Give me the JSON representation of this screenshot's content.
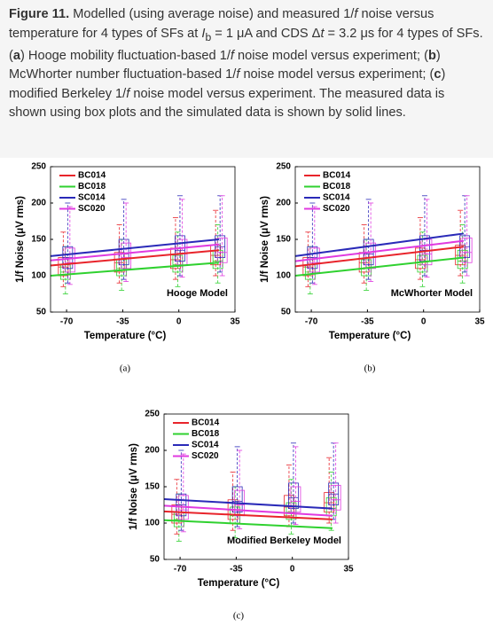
{
  "caption": [
    "Figure 11.",
    " Modelled (using average noise) and measured 1/",
    "f",
    " noise versus temperature for 4 types of SFs at ",
    "I",
    "b",
    " = 1 μA and CDS Δ",
    "t",
    " = 3.2 μs for 4 types of SFs. (",
    "a",
    ") Hooge mobility fluctuation-based 1/",
    "f",
    " noise model versus experiment; (",
    "b",
    ") McWhorter number fluctuation-based 1/",
    "f",
    " noise model versus experiment; (",
    "c",
    ") modified Berkeley 1/",
    "f",
    " noise model versus experiment. The measured data is shown using box plots and the simulated data is shown by solid lines."
  ],
  "chart_data": [
    {
      "type": "box-line",
      "annotation": "Hooge Model",
      "sublabel": "(a)",
      "x_label": "Temperature (°C)",
      "y_label": "1/f Noise (μV rms)",
      "xlim": [
        -80,
        35
      ],
      "xticks": [
        -70,
        -35,
        0,
        35
      ],
      "ylim": [
        50,
        250
      ],
      "yticks": [
        50,
        100,
        150,
        200,
        250
      ],
      "box_x": [
        -70,
        -35,
        0,
        25
      ],
      "line_x": [
        -80,
        25
      ],
      "series": [
        {
          "name": "BC014",
          "color": "#e8242b",
          "line_values": [
            114,
            135
          ],
          "boxes": [
            [
              85,
              100,
              112,
              125,
              160
            ],
            [
              90,
              105,
              118,
              132,
              170
            ],
            [
              95,
              110,
              122,
              138,
              180
            ],
            [
              100,
              115,
              128,
              142,
              190
            ]
          ]
        },
        {
          "name": "BC018",
          "color": "#2fd12f",
          "line_values": [
            100,
            118
          ],
          "boxes": [
            [
              75,
              95,
              105,
              115,
              140
            ],
            [
              80,
              100,
              110,
              122,
              150
            ],
            [
              85,
              105,
              115,
              128,
              160
            ],
            [
              90,
              110,
              120,
              135,
              170
            ]
          ]
        },
        {
          "name": "SC014",
          "color": "#2a2ab8",
          "line_values": [
            127,
            150
          ],
          "boxes": [
            [
              90,
              110,
              125,
              140,
              200
            ],
            [
              95,
              115,
              130,
              150,
              205
            ],
            [
              100,
              120,
              135,
              155,
              210
            ],
            [
              105,
              125,
              140,
              155,
              210
            ]
          ]
        },
        {
          "name": "SC020",
          "color": "#e03ae0",
          "line_values": [
            121,
            143
          ],
          "boxes": [
            [
              88,
              105,
              118,
              138,
              195
            ],
            [
              92,
              110,
              125,
              145,
              200
            ],
            [
              98,
              115,
              130,
              150,
              205
            ],
            [
              100,
              118,
              132,
              152,
              210
            ]
          ]
        }
      ]
    },
    {
      "type": "box-line",
      "annotation": "McWhorter Model",
      "sublabel": "(b)",
      "x_label": "Temperature (°C)",
      "y_label": "1/f Noise (μV rms)",
      "xlim": [
        -80,
        35
      ],
      "xticks": [
        -70,
        -35,
        0,
        35
      ],
      "ylim": [
        50,
        250
      ],
      "yticks": [
        50,
        100,
        150,
        200,
        250
      ],
      "box_x": [
        -70,
        -35,
        0,
        25
      ],
      "line_x": [
        -80,
        25
      ],
      "series": [
        {
          "name": "BC014",
          "color": "#e8242b",
          "line_values": [
            113,
            140
          ],
          "boxes": [
            [
              85,
              100,
              112,
              125,
              160
            ],
            [
              90,
              105,
              118,
              132,
              170
            ],
            [
              95,
              110,
              122,
              138,
              180
            ],
            [
              100,
              115,
              128,
              142,
              190
            ]
          ]
        },
        {
          "name": "BC018",
          "color": "#2fd12f",
          "line_values": [
            100,
            125
          ],
          "boxes": [
            [
              75,
              95,
              105,
              115,
              140
            ],
            [
              80,
              100,
              110,
              122,
              150
            ],
            [
              85,
              105,
              115,
              128,
              160
            ],
            [
              90,
              110,
              120,
              135,
              170
            ]
          ]
        },
        {
          "name": "SC014",
          "color": "#2a2ab8",
          "line_values": [
            127,
            158
          ],
          "boxes": [
            [
              90,
              110,
              125,
              140,
              200
            ],
            [
              95,
              115,
              130,
              150,
              205
            ],
            [
              100,
              120,
              135,
              155,
              210
            ],
            [
              105,
              125,
              140,
              155,
              210
            ]
          ]
        },
        {
          "name": "SC020",
          "color": "#e03ae0",
          "line_values": [
            120,
            148
          ],
          "boxes": [
            [
              88,
              105,
              118,
              138,
              195
            ],
            [
              92,
              110,
              125,
              145,
              200
            ],
            [
              98,
              115,
              130,
              150,
              205
            ],
            [
              100,
              118,
              132,
              152,
              210
            ]
          ]
        }
      ]
    },
    {
      "type": "box-line",
      "annotation": "Modified Berkeley Model",
      "sublabel": "(c)",
      "x_label": "Temperature (°C)",
      "y_label": "1/f Noise (μV rms)",
      "xlim": [
        -80,
        35
      ],
      "xticks": [
        -70,
        -35,
        0,
        35
      ],
      "ylim": [
        50,
        250
      ],
      "yticks": [
        50,
        100,
        150,
        200,
        250
      ],
      "box_x": [
        -70,
        -35,
        0,
        25
      ],
      "line_x": [
        -80,
        25
      ],
      "series": [
        {
          "name": "BC014",
          "color": "#e8242b",
          "line_values": [
            116,
            105
          ],
          "boxes": [
            [
              85,
              100,
              112,
              125,
              160
            ],
            [
              90,
              105,
              118,
              132,
              170
            ],
            [
              95,
              110,
              122,
              138,
              180
            ],
            [
              100,
              115,
              128,
              142,
              190
            ]
          ]
        },
        {
          "name": "BC018",
          "color": "#2fd12f",
          "line_values": [
            104,
            93
          ],
          "boxes": [
            [
              75,
              95,
              105,
              115,
              140
            ],
            [
              80,
              100,
              110,
              122,
              150
            ],
            [
              85,
              105,
              115,
              128,
              160
            ],
            [
              90,
              110,
              120,
              135,
              170
            ]
          ]
        },
        {
          "name": "SC014",
          "color": "#2a2ab8",
          "line_values": [
            133,
            120
          ],
          "boxes": [
            [
              90,
              110,
              125,
              140,
              200
            ],
            [
              95,
              115,
              130,
              150,
              205
            ],
            [
              100,
              120,
              135,
              155,
              210
            ],
            [
              105,
              125,
              140,
              155,
              210
            ]
          ]
        },
        {
          "name": "SC020",
          "color": "#e03ae0",
          "line_values": [
            124,
            110
          ],
          "boxes": [
            [
              88,
              105,
              118,
              138,
              195
            ],
            [
              92,
              110,
              125,
              145,
              200
            ],
            [
              98,
              115,
              130,
              150,
              205
            ],
            [
              100,
              118,
              132,
              152,
              210
            ]
          ]
        }
      ]
    }
  ]
}
